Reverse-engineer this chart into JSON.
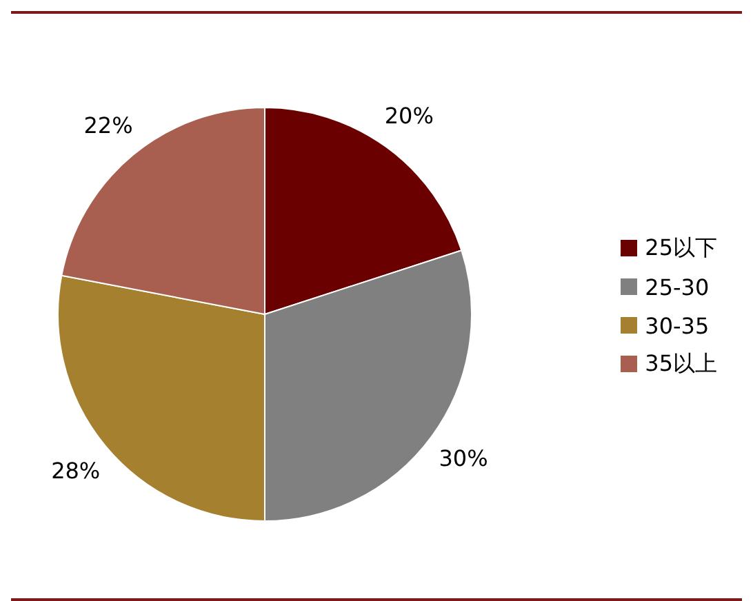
{
  "chart_data": {
    "type": "pie",
    "categories": [
      "25以下",
      "25-30",
      "30-35",
      "35以上"
    ],
    "values": [
      20,
      30,
      28,
      22
    ],
    "colors": [
      "#6b0000",
      "#808080",
      "#a5802f",
      "#a95f50"
    ],
    "value_labels": [
      "20%",
      "30%",
      "28%",
      "22%"
    ],
    "legend": "right"
  }
}
